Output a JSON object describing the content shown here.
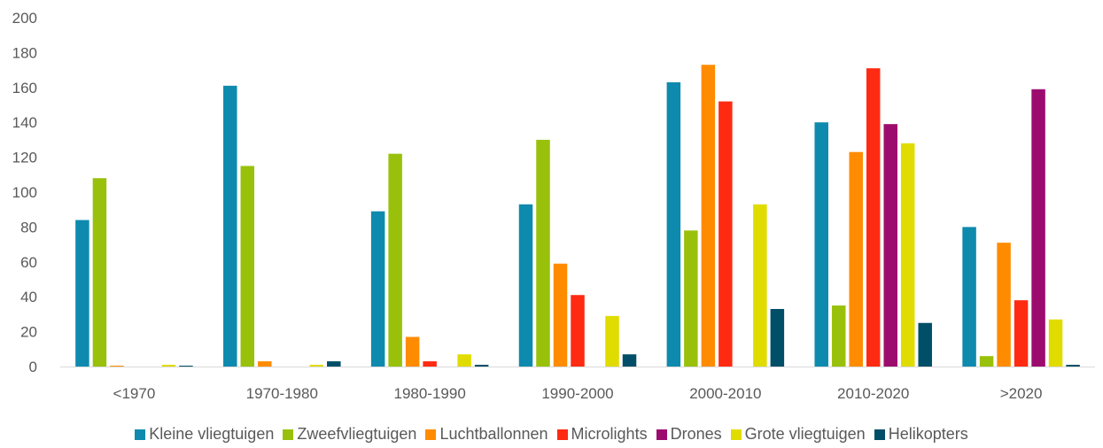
{
  "chart_data": {
    "type": "bar",
    "categories": [
      "<1970",
      "1970-1980",
      "1980-1990",
      "1990-2000",
      "2000-2010",
      "2010-2020",
      ">2020"
    ],
    "ylim": [
      0,
      200
    ],
    "yticks": [
      "0",
      "20",
      "40",
      "60",
      "80",
      "100",
      "120",
      "140",
      "160",
      "180",
      "200"
    ],
    "grid": false,
    "legend_position": "bottom",
    "series": [
      {
        "name": "Kleine vliegtuigen",
        "color": "#0E8AAE",
        "values": [
          84,
          161,
          89,
          93,
          163,
          140,
          80
        ]
      },
      {
        "name": "Zweefvliegtuigen",
        "color": "#99C10C",
        "values": [
          108,
          115,
          122,
          130,
          78,
          35,
          6
        ]
      },
      {
        "name": "Luchtballonnen",
        "color": "#FF8C00",
        "values": [
          0.5,
          3,
          17,
          59,
          173,
          123,
          71
        ]
      },
      {
        "name": "Microlights",
        "color": "#FF2A12",
        "values": [
          0,
          0,
          3,
          41,
          152,
          171,
          38
        ]
      },
      {
        "name": "Drones",
        "color": "#9C0C6E",
        "values": [
          0,
          0,
          0,
          0,
          0,
          139,
          159
        ]
      },
      {
        "name": "Grote vliegtuigen",
        "color": "#E1DC00",
        "values": [
          1,
          1,
          7,
          29,
          93,
          128,
          27
        ]
      },
      {
        "name": "Helikopters",
        "color": "#004E68",
        "values": [
          0.5,
          3,
          1,
          7,
          33,
          25,
          1
        ]
      }
    ]
  }
}
